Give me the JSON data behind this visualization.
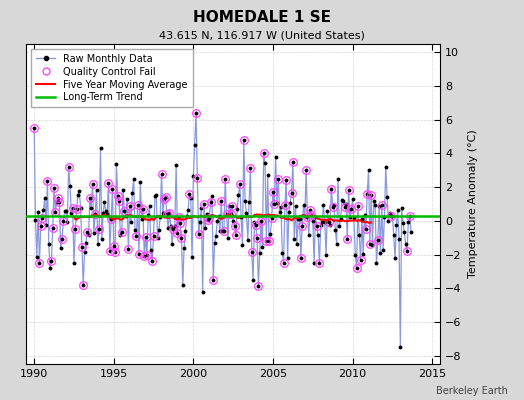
{
  "title": "HOMEDALE 1 SE",
  "subtitle": "43.615 N, 116.917 W (United States)",
  "ylabel": "Temperature Anomaly (°C)",
  "watermark": "Berkeley Earth",
  "xlim": [
    1989.5,
    2015.5
  ],
  "ylim": [
    -8.5,
    10.5
  ],
  "yticks": [
    -8,
    -6,
    -4,
    -2,
    0,
    2,
    4,
    6,
    8,
    10
  ],
  "xticks": [
    1990,
    1995,
    2000,
    2005,
    2010,
    2015
  ],
  "bg_color": "#d8d8d8",
  "plot_bg_color": "#ffffff",
  "raw_line_color": "#8899dd",
  "raw_marker_color": "#000000",
  "qc_color": "#ff44ff",
  "ma_color": "#ff0000",
  "trend_color": "#00bb00",
  "trend_y": 0.3
}
